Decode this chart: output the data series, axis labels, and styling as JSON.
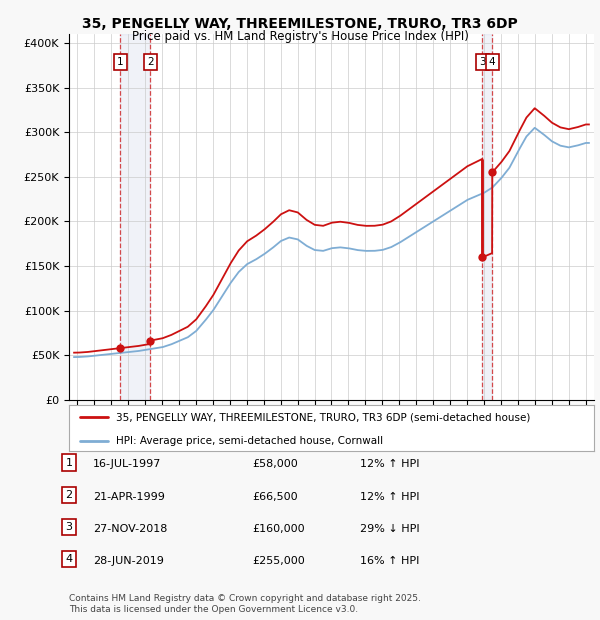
{
  "title": "35, PENGELLY WAY, THREEMILESTONE, TRURO, TR3 6DP",
  "subtitle": "Price paid vs. HM Land Registry's House Price Index (HPI)",
  "transactions": [
    {
      "num": 1,
      "date_label": "16-JUL-1997",
      "price": 58000,
      "pct": "12%",
      "dir": "↑",
      "x_year": 1997.54
    },
    {
      "num": 2,
      "date_label": "21-APR-1999",
      "price": 66500,
      "pct": "12%",
      "dir": "↑",
      "x_year": 1999.31
    },
    {
      "num": 3,
      "date_label": "27-NOV-2018",
      "price": 160000,
      "pct": "29%",
      "dir": "↓",
      "x_year": 2018.91
    },
    {
      "num": 4,
      "date_label": "28-JUN-2019",
      "price": 255000,
      "pct": "16%",
      "dir": "↑",
      "x_year": 2019.49
    }
  ],
  "legend_line1": "35, PENGELLY WAY, THREEMILESTONE, TRURO, TR3 6DP (semi-detached house)",
  "legend_line2": "HPI: Average price, semi-detached house, Cornwall",
  "footer": "Contains HM Land Registry data © Crown copyright and database right 2025.\nThis data is licensed under the Open Government Licence v3.0.",
  "hpi_color": "#7fadd4",
  "price_color": "#cc1111",
  "vline_color": "#cc1111",
  "bg_color": "#f8f8f8",
  "plot_bg": "#ffffff",
  "ylim": [
    0,
    410000
  ],
  "xlim_start": 1994.5,
  "xlim_end": 2025.5,
  "hpi_years": [
    1995,
    1995.5,
    1996,
    1996.5,
    1997,
    1997.5,
    1998,
    1998.5,
    1999,
    1999.5,
    2000,
    2000.5,
    2001,
    2001.5,
    2002,
    2002.5,
    2003,
    2003.5,
    2004,
    2004.5,
    2005,
    2005.5,
    2006,
    2006.5,
    2007,
    2007.5,
    2008,
    2008.5,
    2009,
    2009.5,
    2010,
    2010.5,
    2011,
    2011.5,
    2012,
    2012.5,
    2013,
    2013.5,
    2014,
    2014.5,
    2015,
    2015.5,
    2016,
    2016.5,
    2017,
    2017.5,
    2018,
    2018.5,
    2019,
    2019.5,
    2020,
    2020.5,
    2021,
    2021.5,
    2022,
    2022.5,
    2023,
    2023.5,
    2024,
    2024.5,
    2025
  ],
  "hpi_vals": [
    48000,
    48500,
    49500,
    50500,
    51500,
    52500,
    53500,
    54500,
    56000,
    57500,
    59000,
    62000,
    66000,
    70000,
    77000,
    88000,
    100000,
    115000,
    130000,
    143000,
    152000,
    157000,
    163000,
    170000,
    178000,
    182000,
    180000,
    173000,
    168000,
    167000,
    170000,
    171000,
    170000,
    168000,
    167000,
    167000,
    168000,
    171000,
    176000,
    182000,
    188000,
    194000,
    200000,
    206000,
    212000,
    218000,
    224000,
    228000,
    232000,
    238000,
    248000,
    260000,
    278000,
    295000,
    305000,
    298000,
    290000,
    285000,
    283000,
    285000,
    288000
  ]
}
